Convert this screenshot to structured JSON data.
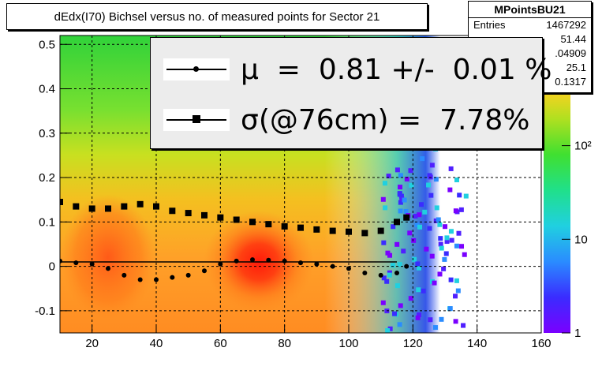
{
  "title": "dEdx(I70) Bichsel versus no. of measured points for Sector 21",
  "stats": {
    "name": "MPointsBU21",
    "rows": [
      {
        "label": "Entries",
        "value": "1467292"
      },
      {
        "label": "",
        "value": "51.44"
      },
      {
        "label": "",
        "value": ".04909"
      },
      {
        "label": "",
        "value": "25.1"
      },
      {
        "label": "",
        "value": "0.1317"
      }
    ]
  },
  "legend": {
    "mu_text": "μ  =  0.81 +/-  0.01 %",
    "sigma_text": "σ(@76cm) =  7.78%"
  },
  "colors": {
    "frame": "#000000",
    "grid": "#000000",
    "markers": "#000000"
  },
  "chart_data": {
    "type": "heatmap",
    "title": "dEdx(I70) Bichsel versus no. of measured points for Sector 21",
    "xlim": [
      10,
      160
    ],
    "ylim": [
      -0.15,
      0.52
    ],
    "x_ticks": [
      20,
      40,
      60,
      80,
      100,
      120,
      140,
      160
    ],
    "y_ticks": [
      -0.1,
      0,
      0.1,
      0.2,
      0.3,
      0.4,
      0.5
    ],
    "y_tick_labels": [
      "-0.1",
      "0",
      "0.1",
      "0.2",
      "0.3",
      "0.4",
      "0.5"
    ],
    "colorbar": {
      "scale": "log",
      "range": [
        1,
        1500
      ],
      "tick_labels": [
        "1",
        "10",
        "10²"
      ]
    },
    "grid": true,
    "density_peaks": [
      {
        "x": 72,
        "y": 0.01,
        "level": "high"
      },
      {
        "x": 25,
        "y": 0.02,
        "level": "medium"
      }
    ],
    "series": [
      {
        "marker": "circle",
        "x": [
          10,
          15,
          20,
          25,
          30,
          35,
          40,
          45,
          50,
          55,
          60,
          65,
          70,
          75,
          80,
          85,
          90,
          95,
          100,
          105,
          110,
          115,
          118
        ],
        "y": [
          0.012,
          0.008,
          0.005,
          -0.005,
          -0.02,
          -0.03,
          -0.03,
          -0.025,
          -0.02,
          -0.01,
          0.005,
          0.012,
          0.015,
          0.014,
          0.012,
          0.008,
          0.005,
          0.0,
          -0.005,
          -0.015,
          -0.02,
          -0.015,
          0.0
        ]
      },
      {
        "marker": "square",
        "x": [
          10,
          15,
          20,
          25,
          30,
          35,
          40,
          45,
          50,
          55,
          60,
          65,
          70,
          75,
          80,
          85,
          90,
          95,
          100,
          105,
          110,
          115,
          118
        ],
        "y": [
          0.145,
          0.135,
          0.13,
          0.13,
          0.135,
          0.14,
          0.135,
          0.125,
          0.12,
          0.115,
          0.11,
          0.105,
          0.1,
          0.095,
          0.09,
          0.087,
          0.083,
          0.08,
          0.078,
          0.075,
          0.08,
          0.1,
          0.11
        ]
      }
    ],
    "reference_line": {
      "y": 0.01,
      "x_range": [
        10,
        115
      ]
    }
  }
}
